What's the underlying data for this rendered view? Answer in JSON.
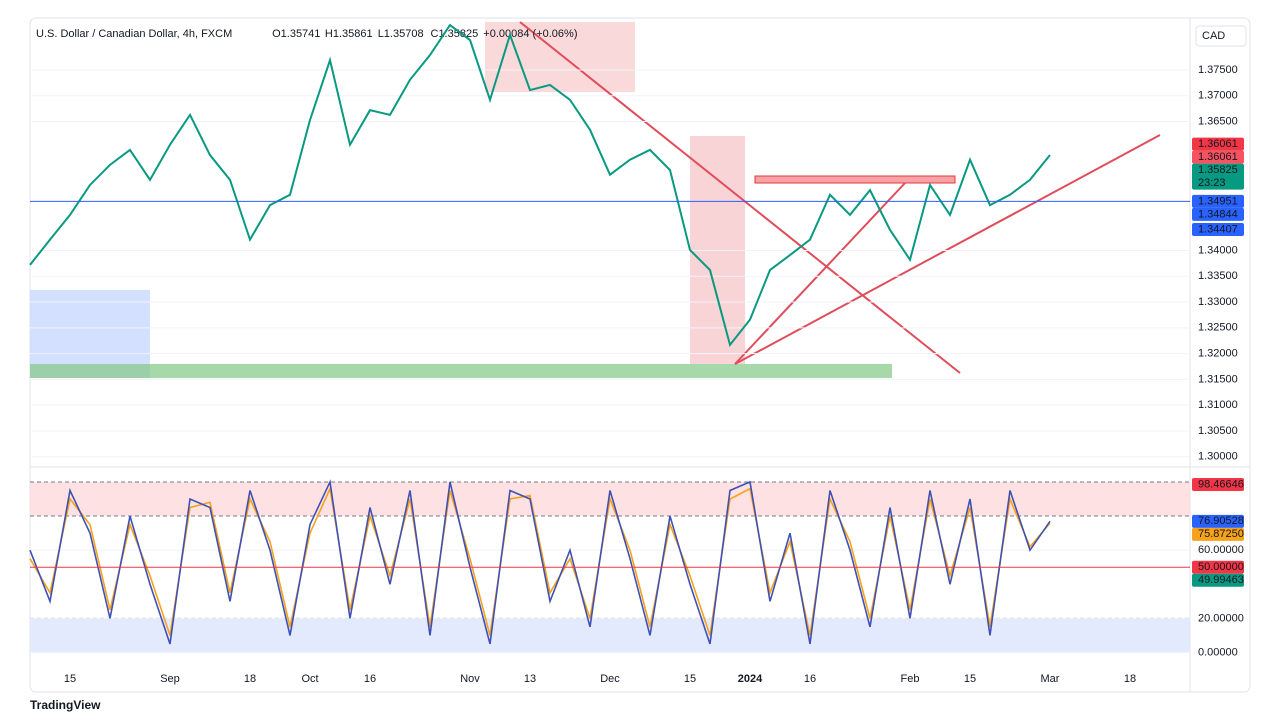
{
  "chart_data": [
    {
      "type": "line",
      "title": "U.S. Dollar / Canadian Dollar, 4h, FXCM",
      "ohlc": [
        "O1.35741",
        "H1.35861",
        "L1.35708",
        "C1.35825",
        "+0.00084 (+0.06%)"
      ],
      "currency": "CAD",
      "categories": [
        null,
        null,
        "15",
        null,
        null,
        null,
        null,
        "Sep",
        null,
        null,
        null,
        "18",
        null,
        null,
        "Oct",
        null,
        null,
        "16",
        null,
        null,
        null,
        null,
        "Nov",
        null,
        null,
        "13",
        null,
        null,
        null,
        "Dec",
        null,
        null,
        null,
        "15",
        null,
        null,
        "2024",
        null,
        null,
        "16",
        null,
        null,
        null,
        null,
        "Feb",
        null,
        null,
        "15",
        null,
        null,
        null,
        "Mar",
        null,
        null,
        null,
        "18",
        null,
        null,
        null
      ],
      "series": [
        {
          "color": "#089981",
          "values": [
            1.3372,
            1.3421,
            1.3469,
            1.3527,
            1.3566,
            1.3595,
            1.3537,
            1.3605,
            1.3663,
            1.3585,
            1.3537,
            1.3421,
            1.3488,
            1.3508,
            1.3653,
            1.3769,
            1.3605,
            1.3672,
            1.3663,
            1.3731,
            1.3779,
            1.3837,
            1.3808,
            1.3692,
            1.3818,
            1.3711,
            1.3721,
            1.3692,
            1.3634,
            1.3547,
            1.3576,
            1.3595,
            1.3556,
            1.3401,
            1.3362,
            1.3217,
            1.3266,
            1.3362,
            1.3391,
            1.3421,
            1.3508,
            1.3469,
            1.3517,
            1.344,
            1.3382,
            1.3527,
            1.3469,
            1.3576,
            1.3488,
            1.3508,
            1.3537,
            1.3585,
            null,
            null,
            null,
            null,
            null,
            null,
            null
          ]
        }
      ],
      "ylim": [
        1.2984,
        1.3843
      ],
      "yticks": [
        {
          "value": 1.3,
          "label": "1.30000"
        },
        {
          "value": 1.305,
          "label": "1.30500"
        },
        {
          "value": 1.31,
          "label": "1.31000"
        },
        {
          "value": 1.315,
          "label": "1.31500"
        },
        {
          "value": 1.32,
          "label": "1.32000"
        },
        {
          "value": 1.325,
          "label": "1.32500"
        },
        {
          "value": 1.33,
          "label": "1.33000"
        },
        {
          "value": 1.335,
          "label": "1.33500"
        },
        {
          "value": 1.34,
          "label": "1.34000"
        },
        {
          "value": 1.365,
          "label": "1.36500"
        },
        {
          "value": 1.37,
          "label": "1.37000"
        },
        {
          "value": 1.375,
          "label": "1.37500"
        }
      ],
      "price_labels": [
        {
          "value": 1.36061,
          "label": "1.36061",
          "color": "#f23645"
        },
        {
          "value": 1.36061,
          "label": "1.36061",
          "color": "#f7525f"
        },
        {
          "value": 1.35825,
          "label": "1.35825",
          "color": "#089981",
          "countdown": "23:23"
        },
        {
          "value": 1.34951,
          "label": "1.34951",
          "color": "#2962ff",
          "line": true
        },
        {
          "value": 1.34844,
          "label": "1.34844",
          "color": "#2962ff"
        },
        {
          "value": 1.34407,
          "label": "1.34407",
          "color": "#2962ff"
        }
      ]
    },
    {
      "type": "line",
      "series": [
        {
          "color": "#f7a21b",
          "values": [
            55,
            35,
            90,
            75,
            25,
            75,
            45,
            10,
            85,
            88,
            35,
            90,
            65,
            15,
            70,
            96,
            25,
            80,
            45,
            90,
            15,
            95,
            55,
            10,
            90,
            92,
            35,
            55,
            20,
            90,
            60,
            15,
            75,
            45,
            10,
            90,
            96,
            35,
            65,
            10,
            90,
            65,
            20,
            80,
            25,
            90,
            45,
            85,
            15,
            90,
            62,
            75.8725
          ]
        },
        {
          "color": "#3f51b5",
          "values": [
            60,
            30,
            95,
            70,
            20,
            80,
            40,
            5,
            90,
            85,
            30,
            95,
            60,
            10,
            75,
            100,
            20,
            85,
            40,
            95,
            10,
            100,
            50,
            5,
            95,
            90,
            30,
            60,
            15,
            95,
            55,
            10,
            80,
            40,
            5,
            95,
            100,
            30,
            70,
            5,
            95,
            60,
            15,
            85,
            20,
            95,
            40,
            90,
            10,
            95,
            60,
            76.90528
          ]
        }
      ],
      "ylim": [
        -22,
        107
      ],
      "yticks": [
        {
          "value": 0,
          "label": "0.00000"
        },
        {
          "value": 20,
          "label": "20.00000"
        },
        {
          "value": 60,
          "label": "60.00000"
        }
      ],
      "upper_band": [
        80,
        100
      ],
      "lower_band": [
        0,
        20
      ],
      "price_labels": [
        {
          "value": 98.46646,
          "label": "98.46646",
          "color": "#f23645"
        },
        {
          "value": 76.90528,
          "label": "76.90528",
          "color": "#2962ff"
        },
        {
          "value": 75.8725,
          "label": "75.87250",
          "color": "#f7a21b"
        },
        {
          "value": 50,
          "label": "50.00000",
          "color": "#f23645",
          "line": true
        },
        {
          "value": 49.99463,
          "label": "49.99463",
          "color": "#089981"
        }
      ]
    }
  ],
  "footer": "TradingView"
}
